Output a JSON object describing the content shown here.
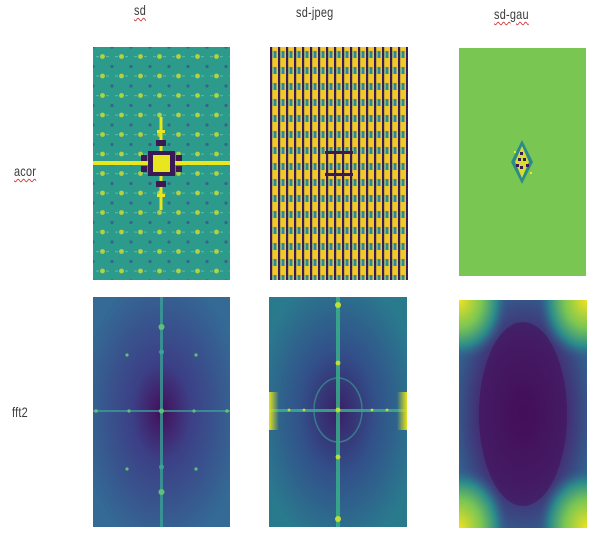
{
  "columns": [
    "sd",
    "sd-jpeg",
    "sd-gau"
  ],
  "rows": [
    "acor",
    "fft2"
  ],
  "colors": {
    "acor_bg": "#2a9a8a",
    "acor_gau_bg": "#7ac653",
    "fft_bg": "#3b5a8c",
    "fft_dark": "#440e5a",
    "fft_bright": "#e4e21a",
    "dot_yellow": "#d9e02a",
    "dot_dark": "#3a1a55"
  }
}
